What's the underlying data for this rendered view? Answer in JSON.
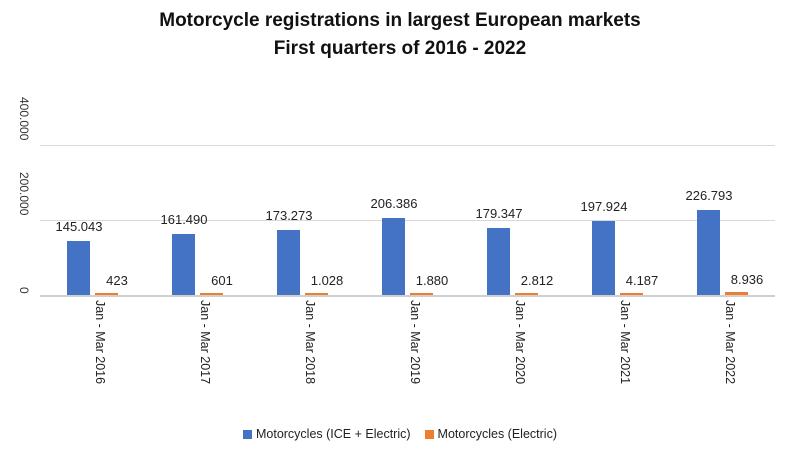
{
  "chart_data": {
    "type": "bar",
    "title": "Motorcycle registrations in largest European markets",
    "subtitle": "First quarters of 2016 - 2022",
    "xlabel": "",
    "ylabel": "",
    "ylim": [
      0,
      400000
    ],
    "yticks": [
      "0",
      "200.000",
      "400.000"
    ],
    "grid": true,
    "legend_position": "bottom",
    "categories": [
      "Jan - Mar 2016",
      "Jan - Mar 2017",
      "Jan - Mar 2018",
      "Jan - Mar 2019",
      "Jan - Mar 2020",
      "Jan - Mar 2021",
      "Jan - Mar 2022"
    ],
    "series": [
      {
        "name": "Motorcycles (ICE + Electric)",
        "color": "#4472C4",
        "values": [
          145043,
          161490,
          173273,
          206386,
          179347,
          197924,
          226793
        ],
        "labels": [
          "145.043",
          "161.490",
          "173.273",
          "206.386",
          "179.347",
          "197.924",
          "226.793"
        ]
      },
      {
        "name": "Motorcycles (Electric)",
        "color": "#ED7D31",
        "values": [
          423,
          601,
          1028,
          1880,
          2812,
          4187,
          8936
        ],
        "labels": [
          "423",
          "601",
          "1.028",
          "1.880",
          "2.812",
          "4.187",
          "8.936"
        ]
      }
    ]
  }
}
